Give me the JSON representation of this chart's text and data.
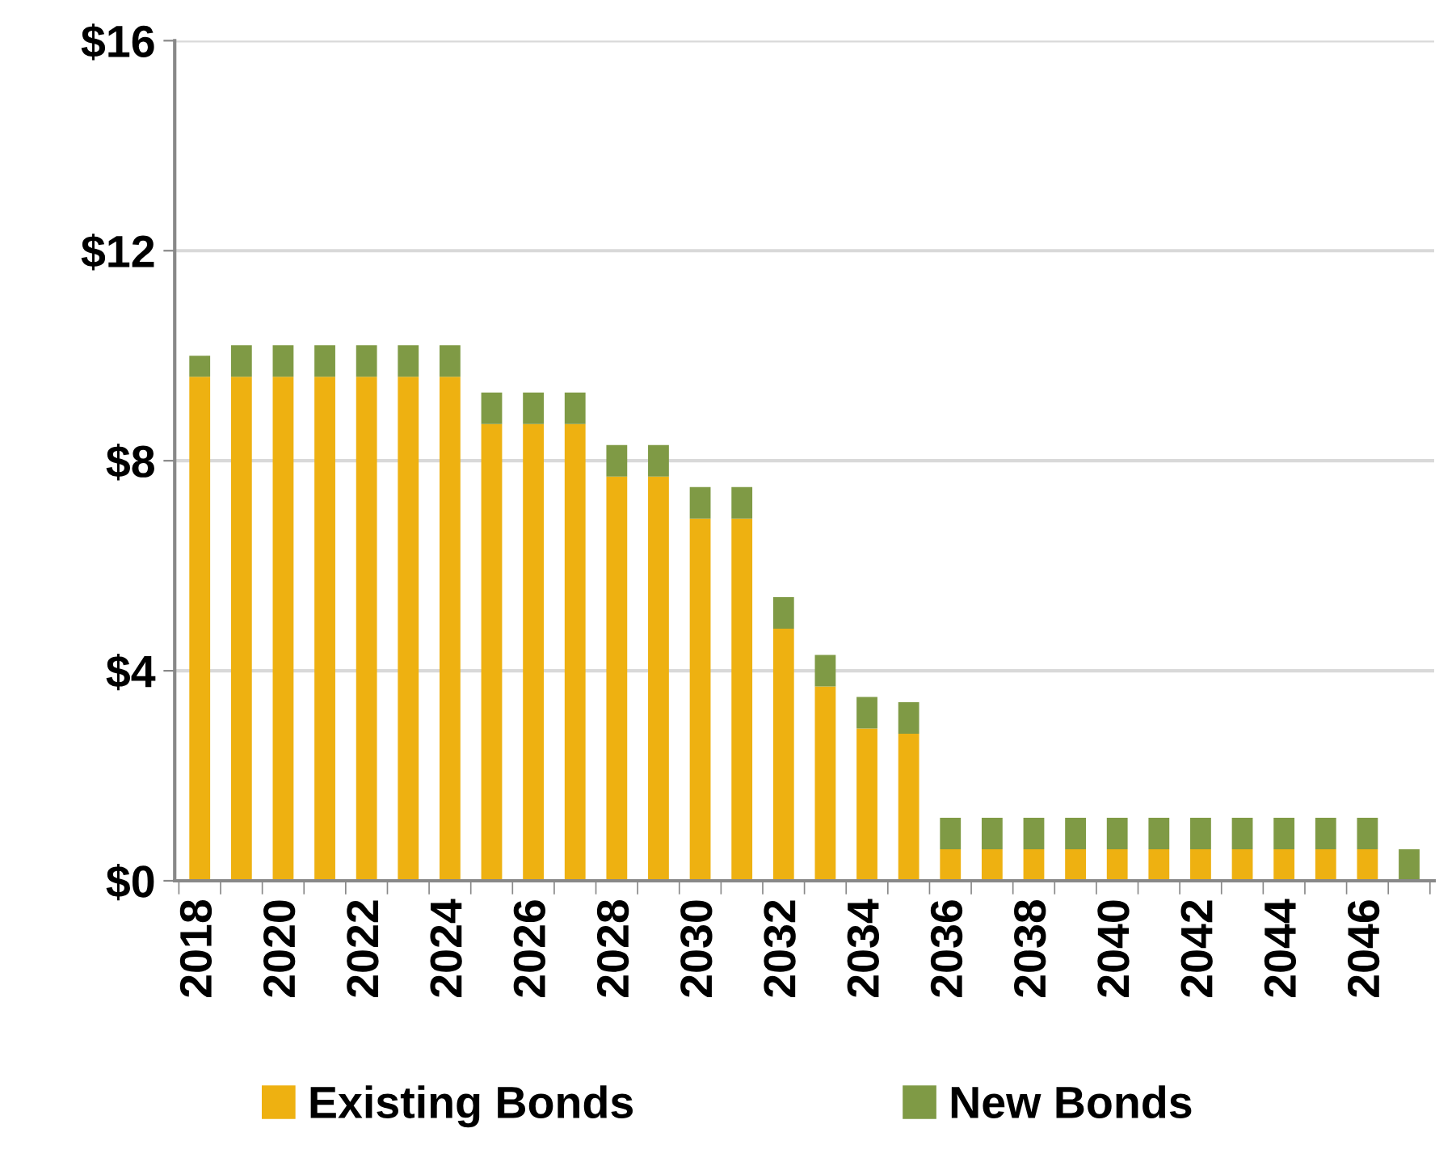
{
  "chart_data": {
    "type": "bar",
    "stacked": true,
    "categories": [
      "2018",
      null,
      "2020",
      null,
      "2022",
      null,
      "2024",
      null,
      "2026",
      null,
      "2028",
      null,
      "2030",
      null,
      "2032",
      null,
      "2034",
      null,
      "2036",
      null,
      "2038",
      null,
      "2040",
      null,
      "2042",
      null,
      "2044",
      null,
      "2046",
      null
    ],
    "series": [
      {
        "name": "Existing Bonds",
        "color": "#eeb111",
        "values": [
          9.6,
          9.6,
          9.6,
          9.6,
          9.6,
          9.6,
          9.6,
          8.7,
          8.7,
          8.7,
          7.7,
          7.7,
          6.9,
          6.9,
          4.8,
          3.7,
          2.9,
          2.8,
          0.6,
          0.6,
          0.6,
          0.6,
          0.6,
          0.6,
          0.6,
          0.6,
          0.6,
          0.6,
          0.6,
          0
        ]
      },
      {
        "name": "New Bonds",
        "color": "#7f9a45",
        "values": [
          0.4,
          0.6,
          0.6,
          0.6,
          0.6,
          0.6,
          0.6,
          0.6,
          0.6,
          0.6,
          0.6,
          0.6,
          0.6,
          0.6,
          0.6,
          0.6,
          0.6,
          0.6,
          0.6,
          0.6,
          0.6,
          0.6,
          0.6,
          0.6,
          0.6,
          0.6,
          0.6,
          0.6,
          0.6,
          0.6
        ]
      }
    ],
    "ylim": [
      0,
      16
    ],
    "yticks": [
      {
        "value": 0,
        "label": "$0"
      },
      {
        "value": 4,
        "label": "$4"
      },
      {
        "value": 8,
        "label": "$8"
      },
      {
        "value": 12,
        "label": "$12"
      },
      {
        "value": 16,
        "label": "$16"
      }
    ],
    "grid": "y",
    "legend": "bottom"
  }
}
